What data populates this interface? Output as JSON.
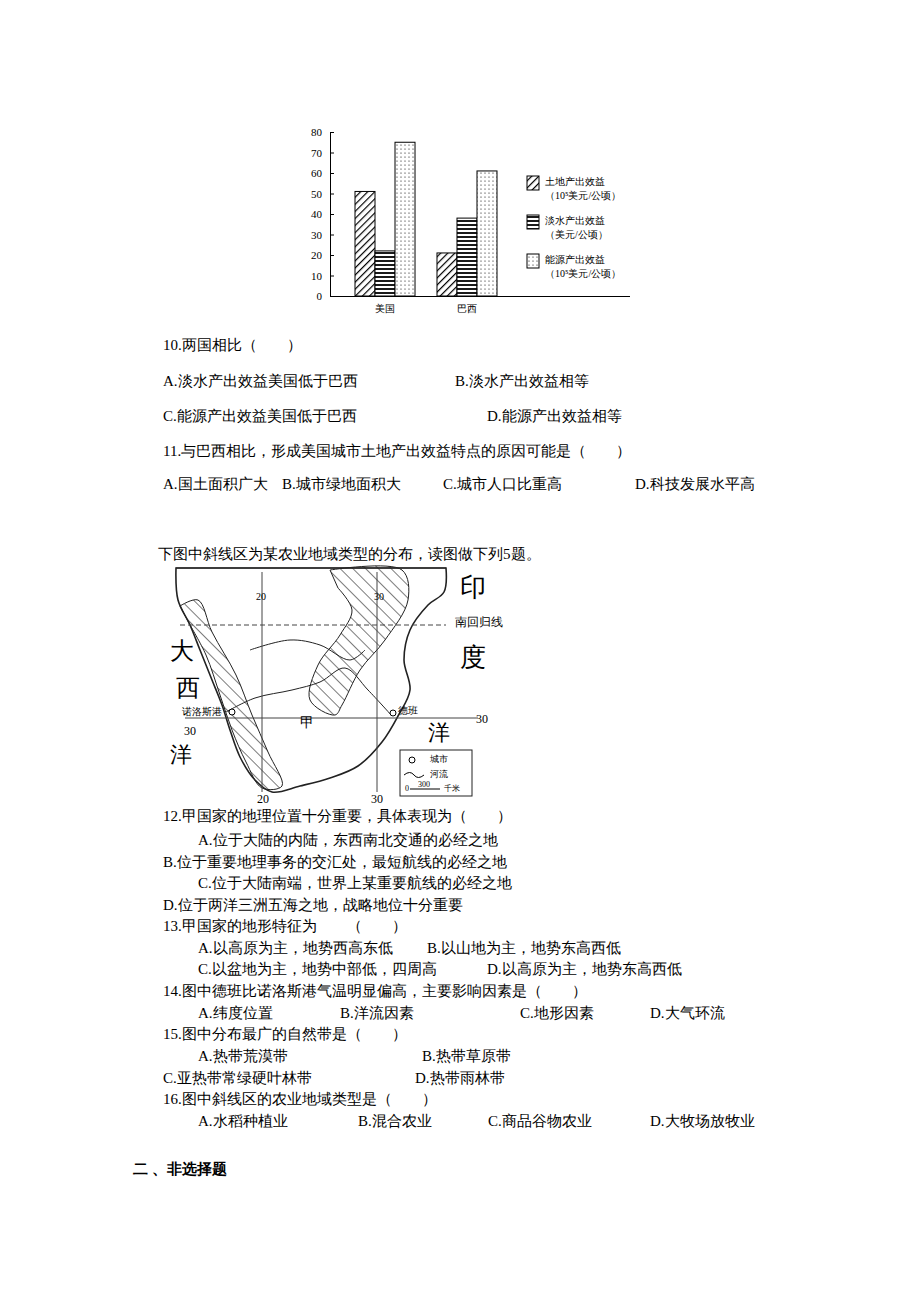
{
  "chart_data": {
    "type": "bar",
    "categories": [
      "美国",
      "巴西"
    ],
    "series": [
      {
        "name": "土地产出效益",
        "unit": "（10⁵美元/公顷）",
        "color": "#000000",
        "values": [
          51,
          21
        ]
      },
      {
        "name": "淡水产出效益",
        "unit": "（美元/公顷）",
        "color": "#000000",
        "values": [
          22,
          38
        ]
      },
      {
        "name": "能源产出效益",
        "unit": "（10⁵美元/公顷）",
        "color": "#000000",
        "values": [
          75,
          61
        ]
      }
    ],
    "ylim": [
      0,
      80
    ],
    "yticks": [
      0,
      10,
      20,
      30,
      40,
      50,
      60,
      70,
      80
    ],
    "grid": false,
    "legend": "right"
  },
  "document": {
    "questions_a": [
      {
        "stem": "10.两国相比（　　）",
        "options": [
          "A.淡水产出效益美国低于巴西",
          "B.淡水产出效益相等",
          "C.能源产出效益美国低于巴西",
          "D.能源产出效益相等"
        ]
      },
      {
        "stem": "11.与巴西相比，形成美国城市土地产出效益特点的原因可能是（　　）",
        "options": [
          "A.国土面积广大",
          "B.城市绿地面积大",
          "C.城市人口比重高",
          "D.科技发展水平高"
        ]
      }
    ],
    "map_intro": "下图中斜线区为某农业地域类型的分布，读图做下列5题。",
    "map_labels": [
      "印",
      "度",
      "洋",
      "大",
      "西",
      "洋",
      "南回归线",
      "诺洛斯港",
      "甲",
      "德班",
      "30",
      "30",
      "20",
      "30",
      "20",
      "30",
      "城市",
      "河流",
      "0",
      "300",
      "千米"
    ],
    "questions_b": [
      {
        "stem": "12.甲国家的地理位置十分重要，具体表现为（　　）",
        "options": [
          "A.位于大陆的内陆，东西南北交通的必经之地",
          "B.位于重要地理事务的交汇处，最短航线的必经之地",
          "C.位于大陆南端，世界上某重要航线的必经之地",
          "D.位于两洋三洲五海之地，战略地位十分重要"
        ]
      },
      {
        "stem": "13.甲国家的地形特征为　　（　　）",
        "options": [
          "A.以高原为主，地势西高东低",
          "B.以山地为主，地势东高西低",
          "C.以盆地为主，地势中部低，四周高",
          "D.以高原为主，地势东高西低"
        ]
      },
      {
        "stem": "14.图中德班比诺洛斯港气温明显偏高，主要影响因素是（　　）",
        "options": [
          "A.纬度位置",
          "B.洋流因素",
          "C.地形因素",
          "D.大气环流"
        ]
      },
      {
        "stem": "15.图中分布最广的自然带是（　　）",
        "options": [
          "A.热带荒漠带",
          "B.热带草原带",
          "C.亚热带常绿硬叶林带",
          "D.热带雨林带"
        ]
      },
      {
        "stem": "16.图中斜线区的农业地域类型是（　　）",
        "options": [
          "A.水稻种植业",
          "B.混合农业",
          "C.商品谷物农业",
          "D.大牧场放牧业"
        ]
      }
    ],
    "section": "二 、非选择题"
  }
}
